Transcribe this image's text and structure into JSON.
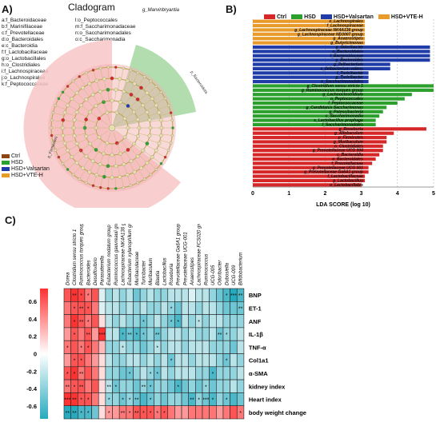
{
  "panels": {
    "a": "A)",
    "b": "B)",
    "c": "C)"
  },
  "cladogram": {
    "title": "Cladogram",
    "top_label": "g_Marvinbryantia",
    "left_legend": [
      "a:f_Bacteroidaceae",
      "b:f_Marinifilaceae",
      "c:f_Prevotellaceae",
      "d:o_Bacteroidales",
      "e:c_Bacteroidia",
      "f:f_Lactobacillaceae",
      "g:o_Lactobacillales",
      "h:o_Clostridiales",
      "i:f_Lachnospiraceae",
      "j:o_Lachnospirales",
      "k:f_Peptococcaceae"
    ],
    "right_legend": [
      "l:o_Peptococcales",
      "m:f_Saccharimonadaceae",
      "n:o_Saccharimonadales",
      "o:c_Saccharimonadia"
    ],
    "group_legend": [
      {
        "label": "Ctrl",
        "color": "#8B4513"
      },
      {
        "label": "HSD",
        "color": "#2ca02c"
      },
      {
        "label": "HSD+Valsartan",
        "color": "#1f3ca8"
      },
      {
        "label": "HSD+VTE-H",
        "color": "#e89b2b"
      }
    ],
    "sector_labels": [
      "p_Firmicutes",
      "p_Bacteroidota"
    ]
  },
  "lda": {
    "legend": [
      {
        "label": "Ctrl",
        "color": "#d62728"
      },
      {
        "label": "HSD",
        "color": "#2ca02c"
      },
      {
        "label": "HSD+Valsartan",
        "color": "#1f3ca8"
      },
      {
        "label": "HSD+VTE-H",
        "color": "#e89b2b"
      }
    ],
    "xlabel": "LDA SCORE (log 10)",
    "xticks": [
      "0",
      "1",
      "2",
      "3",
      "4",
      "5"
    ],
    "xlim": [
      0,
      5
    ],
    "chart_data": {
      "type": "bar",
      "orientation": "horizontal",
      "xlim": [
        0,
        5
      ],
      "xlabel": "LDA SCORE (log 10)",
      "bars": [
        {
          "label": "o_Lachnospirales",
          "value": 3.1,
          "group": "HSD+VTE-H"
        },
        {
          "label": "f_Lachnospiraceae",
          "value": 3.1,
          "group": "HSD+VTE-H"
        },
        {
          "label": "g_Lachnospiraceae NK4A136 group",
          "value": 3.1,
          "group": "HSD+VTE-H"
        },
        {
          "label": "g_Lachnospiraceae ND3007 group",
          "value": 3.1,
          "group": "HSD+VTE-H"
        },
        {
          "label": "g_Anaerostipes",
          "value": 3.1,
          "group": "HSD+VTE-H"
        },
        {
          "label": "g_Butyricimonas",
          "value": 3.1,
          "group": "HSD+VTE-H"
        },
        {
          "label": "g_Odoribacter",
          "value": 4.9,
          "group": "HSD+Valsartan"
        },
        {
          "label": "o_Bacteroidales",
          "value": 4.9,
          "group": "HSD+Valsartan"
        },
        {
          "label": "f_Bacteroidaceae",
          "value": 4.9,
          "group": "HSD+Valsartan"
        },
        {
          "label": "g_Bacteroides",
          "value": 4.9,
          "group": "HSD+Valsartan"
        },
        {
          "label": "g_Ileibacterium",
          "value": 3.8,
          "group": "HSD+Valsartan"
        },
        {
          "label": "s_Ileibacterium valens",
          "value": 3.8,
          "group": "HSD+Valsartan"
        },
        {
          "label": "f_Turicibacter",
          "value": 3.2,
          "group": "HSD+Valsartan"
        },
        {
          "label": "g_Turicibacter",
          "value": 3.2,
          "group": "HSD+Valsartan"
        },
        {
          "label": "o_Saccharimonadales",
          "value": 3.2,
          "group": "HSD+Valsartan"
        },
        {
          "label": "g_Clostridium sensu stricto 1",
          "value": 5.0,
          "group": "HSD"
        },
        {
          "label": "g_Ruminococcus torques group",
          "value": 5.0,
          "group": "HSD"
        },
        {
          "label": "g_Lachnoclostridium",
          "value": 4.4,
          "group": "HSD"
        },
        {
          "label": "o_Peptococcales",
          "value": 4.2,
          "group": "HSD"
        },
        {
          "label": "f_Peptococcaceae",
          "value": 4.0,
          "group": "HSD"
        },
        {
          "label": "g_Candidatus Saccharimonas",
          "value": 3.7,
          "group": "HSD"
        },
        {
          "label": "g_Patescibacteria",
          "value": 3.6,
          "group": "HSD"
        },
        {
          "label": "c_Saccharimonadia",
          "value": 3.5,
          "group": "HSD"
        },
        {
          "label": "s_Lactobacillus prophage",
          "value": 3.4,
          "group": "HSD"
        },
        {
          "label": "f_Saccharimonadales",
          "value": 3.4,
          "group": "HSD"
        },
        {
          "label": "g_Roseburia",
          "value": 4.8,
          "group": "Ctrl"
        },
        {
          "label": "g_Allobaculum",
          "value": 3.9,
          "group": "Ctrl"
        },
        {
          "label": "p_Firmicutes",
          "value": 3.7,
          "group": "Ctrl"
        },
        {
          "label": "g_Muribaculum",
          "value": 3.7,
          "group": "Ctrl"
        },
        {
          "label": "o_Clostridiales",
          "value": 3.6,
          "group": "Ctrl"
        },
        {
          "label": "g_Prevotellaceae UCG 004",
          "value": 3.6,
          "group": "Ctrl"
        },
        {
          "label": "c_Bacteroidia",
          "value": 3.5,
          "group": "Ctrl"
        },
        {
          "label": "o_Bacteroidales",
          "value": 3.4,
          "group": "Ctrl"
        },
        {
          "label": "f_Prevotellaceae",
          "value": 3.3,
          "group": "Ctrl"
        },
        {
          "label": "g_Prevotellaceae UCG 001",
          "value": 3.2,
          "group": "Ctrl"
        },
        {
          "label": "g_Prevotellaceae Ga6A1 group",
          "value": 3.2,
          "group": "Ctrl"
        },
        {
          "label": "f_Lactobacillaceae",
          "value": 3.1,
          "group": "Ctrl"
        },
        {
          "label": "g_Lactobacillus",
          "value": 3.1,
          "group": "Ctrl"
        },
        {
          "label": "o_Lactobacillales",
          "value": 3.0,
          "group": "Ctrl"
        }
      ]
    }
  },
  "heatmap": {
    "columns": [
      "Dorea",
      "Clostridium sensu stricto 1",
      "Ruminococcus torques group",
      "Bacteroides",
      "Desulfovibrio",
      "Parasutterella",
      "Eubacterium nodatum group",
      "Ruminococcus gauvreauii group",
      "Lachnospiraceae NK4A136 group",
      "Eubacterium xylanophilum group",
      "Muribaculaceae",
      "Turicibacter",
      "Muribaculum",
      "Blautia",
      "Lactobacillus",
      "Roseburia",
      "Prevotellaceae Ga6A1 group",
      "Prevotellaceae UCG-001",
      "Anaerostipes",
      "Lachnospiraceae FCS020 group",
      "Ruminococcus",
      "UCG-005",
      "Odoribacter",
      "Dubosiella",
      "UCG-009",
      "Bifidobacterium"
    ],
    "rows": [
      "BNP",
      "ET-1",
      "ANF",
      "IL-1β",
      "TNF-α",
      "Col1a1",
      "α-SMA",
      "kidney index",
      "Heart index",
      "body weight change"
    ],
    "scale_ticks": [
      "0.6",
      "0.4",
      "0.2",
      "0",
      "-0.2",
      "-0.4",
      "-0.6"
    ],
    "chart_data": {
      "type": "heatmap",
      "values": [
        [
          0.5,
          0.6,
          0.55,
          0.4,
          0.5,
          -0.1,
          -0.3,
          -0.2,
          -0.3,
          -0.2,
          -0.4,
          -0.3,
          -0.2,
          -0.3,
          -0.3,
          -0.2,
          -0.2,
          -0.2,
          -0.1,
          -0.2,
          -0.2,
          -0.3,
          -0.4,
          -0.5,
          -0.6,
          -0.5
        ],
        [
          0.4,
          0.5,
          0.5,
          0.5,
          0.4,
          -0.1,
          -0.2,
          -0.2,
          -0.3,
          -0.2,
          -0.3,
          -0.2,
          -0.3,
          -0.3,
          -0.2,
          -0.3,
          -0.4,
          -0.2,
          -0.2,
          -0.3,
          -0.2,
          -0.2,
          -0.3,
          -0.4,
          -0.4,
          -0.4
        ],
        [
          0.4,
          0.6,
          0.5,
          0.4,
          0.5,
          0.1,
          -0.2,
          -0.3,
          -0.2,
          -0.3,
          -0.3,
          -0.4,
          -0.3,
          -0.2,
          -0.3,
          -0.4,
          -0.5,
          -0.2,
          -0.3,
          -0.2,
          -0.3,
          -0.2,
          -0.2,
          -0.3,
          -0.3,
          -0.3
        ],
        [
          0.3,
          0.5,
          0.4,
          0.5,
          0.3,
          0.6,
          -0.2,
          -0.2,
          -0.5,
          -0.4,
          -0.5,
          -0.4,
          -0.3,
          -0.4,
          -0.3,
          -0.2,
          -0.2,
          -0.3,
          -0.2,
          -0.3,
          -0.3,
          -0.2,
          -0.4,
          -0.3,
          -0.3,
          -0.2
        ],
        [
          0.4,
          0.5,
          0.4,
          0.5,
          0.4,
          0.2,
          -0.3,
          -0.3,
          -0.2,
          -0.3,
          -0.3,
          -0.4,
          -0.3,
          -0.2,
          -0.3,
          -0.2,
          -0.2,
          -0.3,
          -0.2,
          -0.2,
          -0.2,
          -0.3,
          -0.3,
          -0.3,
          -0.4,
          -0.2
        ],
        [
          0.3,
          0.5,
          0.5,
          0.4,
          0.3,
          0.1,
          -0.2,
          -0.3,
          -0.3,
          -0.2,
          -0.2,
          -0.3,
          -0.2,
          -0.3,
          -0.2,
          -0.4,
          -0.2,
          -0.2,
          -0.3,
          -0.2,
          -0.2,
          -0.2,
          -0.3,
          -0.4,
          -0.2,
          -0.3
        ],
        [
          0.5,
          0.6,
          0.4,
          0.5,
          0.4,
          0.1,
          -0.3,
          -0.3,
          -0.4,
          -0.4,
          -0.3,
          -0.2,
          -0.3,
          -0.4,
          -0.2,
          -0.3,
          -0.2,
          -0.2,
          -0.2,
          -0.3,
          -0.3,
          -0.5,
          -0.3,
          -0.3,
          -0.3,
          -0.2
        ],
        [
          0.4,
          0.5,
          0.5,
          0.4,
          0.5,
          0.1,
          -0.2,
          -0.4,
          -0.3,
          -0.3,
          -0.4,
          -0.3,
          -0.4,
          -0.3,
          -0.3,
          -0.4,
          -0.5,
          -0.4,
          -0.3,
          -0.4,
          -0.3,
          -0.4,
          -0.3,
          -0.3,
          -0.2,
          -0.3
        ],
        [
          0.6,
          0.6,
          0.5,
          0.5,
          0.4,
          0.1,
          -0.3,
          -0.3,
          -0.4,
          -0.3,
          -0.4,
          -0.5,
          -0.4,
          -0.3,
          -0.4,
          -0.3,
          -0.3,
          -0.4,
          -0.5,
          -0.3,
          -0.4,
          -0.5,
          -0.3,
          -0.4,
          -0.5,
          -0.4
        ],
        [
          -0.6,
          -0.6,
          -0.5,
          -0.5,
          -0.4,
          0.1,
          0.3,
          0.3,
          0.4,
          0.4,
          0.5,
          0.5,
          0.5,
          0.4,
          0.5,
          0.4,
          0.3,
          0.3,
          0.4,
          0.4,
          0.4,
          0.4,
          0.3,
          0.4,
          0.5,
          0.4
        ]
      ],
      "stars": [
        [
          "",
          "**",
          "*",
          "*",
          "",
          "",
          "",
          "",
          "",
          "",
          "",
          "",
          "",
          "",
          "",
          "",
          "",
          "",
          "",
          "",
          "",
          "",
          "",
          "*",
          "***",
          "**"
        ],
        [
          "",
          "*",
          "**",
          "*",
          "",
          "",
          "",
          "",
          "",
          "",
          "",
          "",
          "",
          "",
          "",
          "*",
          "",
          "",
          "",
          "",
          "",
          "",
          "",
          "",
          "",
          "**"
        ],
        [
          "",
          "*",
          "**",
          "*",
          "",
          "",
          "",
          "",
          "",
          "",
          "",
          "*",
          "",
          "",
          "",
          "*",
          "*",
          "",
          "",
          "*",
          "",
          "",
          "",
          "",
          "",
          ""
        ],
        [
          "",
          "*",
          "",
          "**",
          "",
          "***",
          "",
          "",
          "*",
          "**",
          "*",
          "*",
          "",
          "**",
          "",
          "",
          "",
          "",
          "",
          "",
          "",
          "",
          "**",
          "*",
          "",
          ""
        ],
        [
          "*",
          "",
          "*",
          "*",
          "",
          "",
          "",
          "",
          "*",
          "",
          "",
          "",
          "",
          "*",
          "",
          "",
          "",
          "",
          "",
          "",
          "",
          "",
          "",
          "",
          "",
          ""
        ],
        [
          "",
          "*",
          "*",
          "",
          "",
          "",
          "",
          "",
          "",
          "",
          "",
          "",
          "",
          "",
          "",
          "*",
          "",
          "",
          "",
          "",
          "",
          "",
          "",
          "*",
          "",
          ""
        ],
        [
          "*",
          "*",
          "**",
          "",
          "",
          "",
          "",
          "",
          "",
          "*",
          "",
          "",
          "*",
          "*",
          "",
          "",
          "",
          "",
          "",
          "",
          "",
          "*",
          "",
          "",
          "",
          ""
        ],
        [
          "**",
          "*",
          "**",
          "",
          "",
          "",
          "**",
          "*",
          "",
          "",
          "",
          "**",
          "*",
          "",
          "",
          "",
          "*",
          "",
          "",
          "",
          "*",
          "",
          "",
          "",
          "",
          ""
        ],
        [
          "***",
          "**",
          "*",
          "*",
          "",
          "",
          "*",
          "",
          "*",
          "*",
          "**",
          "",
          "*",
          "",
          "",
          "",
          "",
          "",
          "**",
          "*",
          "***",
          "*",
          "",
          "*",
          "",
          ""
        ],
        [
          "**",
          "**",
          "*",
          "*",
          "",
          "",
          "*",
          "",
          "**",
          "*",
          "**",
          "*",
          "*",
          "*",
          "*",
          "",
          "",
          "",
          "",
          "",
          "",
          "",
          "",
          "",
          "",
          "*"
        ]
      ]
    }
  }
}
